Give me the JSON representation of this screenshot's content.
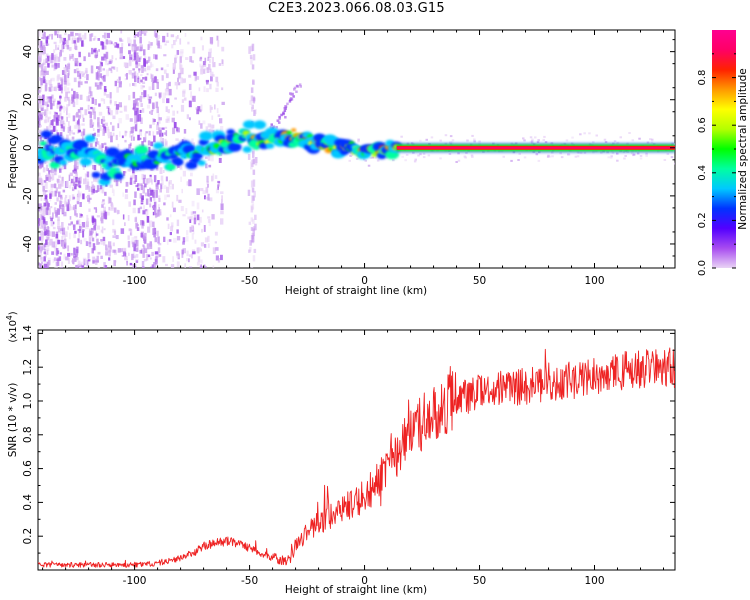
{
  "title": "C2E3.2023.066.08.03.G15",
  "chart_data": [
    {
      "type": "heatmap",
      "xlabel": "Height of straight line (km)",
      "ylabel": "Frequency (Hz)",
      "xlim": [
        -142,
        135
      ],
      "ylim": [
        -50,
        49
      ],
      "x_ticks": [
        -100,
        -50,
        0,
        50,
        100
      ],
      "y_ticks": [
        -40,
        -20,
        0,
        20,
        40
      ],
      "grid": false,
      "colorbar": {
        "label": "Normalized spectral amplitude",
        "range": [
          0.0,
          1.0
        ],
        "ticks": [
          0.0,
          0.2,
          0.4,
          0.6,
          0.8
        ],
        "colors": [
          "#e9d3f5",
          "#a84cf0",
          "#5200ff",
          "#0033ff",
          "#00c8ff",
          "#00ffa0",
          "#00ff00",
          "#b4ff00",
          "#ffff00",
          "#ff9900",
          "#ff2200",
          "#ff0066",
          "#ff0090"
        ]
      },
      "ridge_frequency": [
        {
          "x": -142,
          "y": 0
        },
        {
          "x": -120,
          "y": -2
        },
        {
          "x": -110,
          "y": -8
        },
        {
          "x": -95,
          "y": -4
        },
        {
          "x": -80,
          "y": -3
        },
        {
          "x": -70,
          "y": -1
        },
        {
          "x": -60,
          "y": 1
        },
        {
          "x": -52,
          "y": 5
        },
        {
          "x": -45,
          "y": 2
        },
        {
          "x": -40,
          "y": 4
        },
        {
          "x": -35,
          "y": 5
        },
        {
          "x": -28,
          "y": 4
        },
        {
          "x": -20,
          "y": 2
        },
        {
          "x": -10,
          "y": 0
        },
        {
          "x": 0,
          "y": -2
        },
        {
          "x": 8,
          "y": -1
        },
        {
          "x": 14,
          "y": 0
        },
        {
          "x": 135,
          "y": 0
        }
      ],
      "ridge_amplitude": [
        {
          "x": -142,
          "y": 0.45
        },
        {
          "x": -110,
          "y": 0.5
        },
        {
          "x": -80,
          "y": 0.55
        },
        {
          "x": -60,
          "y": 0.6
        },
        {
          "x": -40,
          "y": 0.85
        },
        {
          "x": -20,
          "y": 0.8
        },
        {
          "x": 0,
          "y": 0.85
        },
        {
          "x": 14,
          "y": 0.9
        },
        {
          "x": 135,
          "y": 0.95
        }
      ]
    },
    {
      "type": "line",
      "xlabel": "Height of straight line (km)",
      "ylabel": "SNR (10 * v/v)",
      "y_multiplier": "(x10",
      "y_multiplier_exponent": "4",
      "y_multiplier_close": ")",
      "xlim": [
        -142,
        135
      ],
      "ylim": [
        0,
        1.42
      ],
      "x_ticks": [
        -100,
        -50,
        0,
        50,
        100
      ],
      "y_ticks": [
        0.2,
        0.4,
        0.6,
        0.8,
        1.0,
        1.2,
        1.4
      ],
      "color": "#ee2222",
      "grid": false,
      "series": [
        {
          "x": [
            -142,
            -130,
            -120,
            -110,
            -100,
            -90,
            -80,
            -75,
            -70,
            -65,
            -60,
            -55,
            -50,
            -45,
            -40,
            -35,
            -32,
            -30,
            -25,
            -20,
            -15,
            -10,
            -5,
            0,
            5,
            10,
            15,
            20,
            25,
            30,
            35,
            40,
            45,
            50,
            60,
            70,
            80,
            90,
            100,
            110,
            120,
            135
          ],
          "y": [
            0.03,
            0.03,
            0.03,
            0.03,
            0.03,
            0.04,
            0.07,
            0.1,
            0.14,
            0.16,
            0.17,
            0.16,
            0.13,
            0.1,
            0.07,
            0.05,
            0.08,
            0.15,
            0.22,
            0.28,
            0.32,
            0.36,
            0.4,
            0.44,
            0.52,
            0.6,
            0.7,
            0.8,
            0.87,
            0.93,
            0.98,
            1.01,
            1.03,
            1.05,
            1.07,
            1.09,
            1.1,
            1.12,
            1.14,
            1.17,
            1.19,
            1.2
          ]
        }
      ]
    }
  ]
}
